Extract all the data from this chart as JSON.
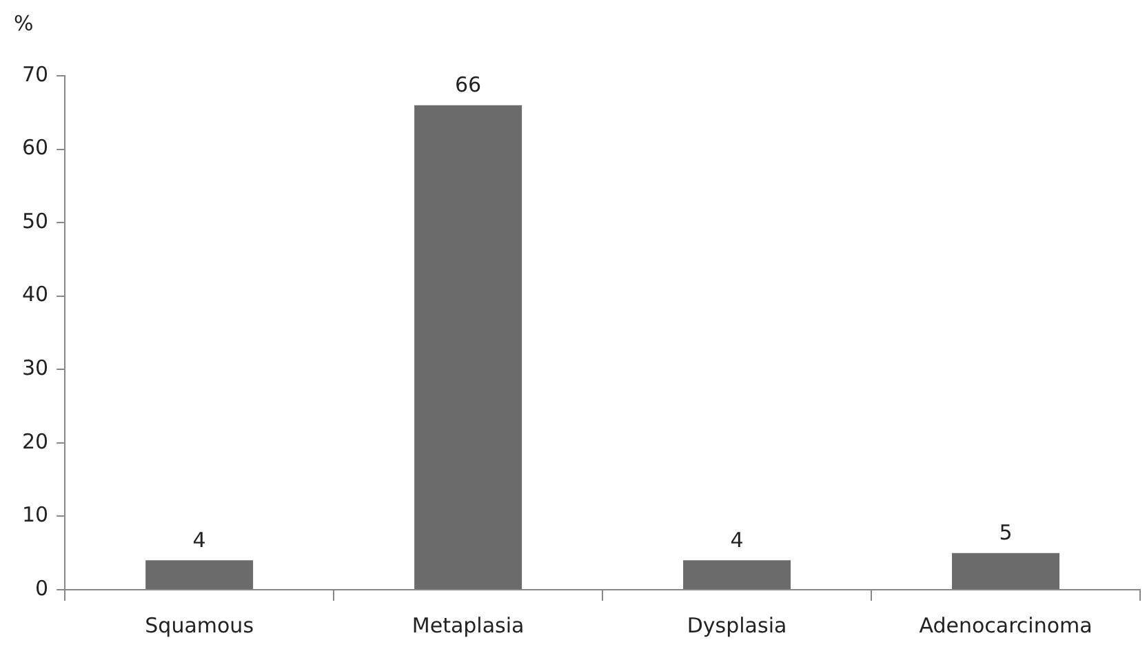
{
  "chart_data": {
    "type": "bar",
    "ylabel": "%",
    "categories": [
      "Squamous",
      "Metaplasia",
      "Dysplasia",
      "Adenocarcinoma"
    ],
    "values": [
      4,
      66,
      4,
      5
    ],
    "color": "#6b6b6b",
    "ylim": [
      0,
      70
    ],
    "yticks": [
      0,
      10,
      20,
      30,
      40,
      50,
      60,
      70
    ],
    "grid": false,
    "legend": false,
    "data_labels": true
  }
}
